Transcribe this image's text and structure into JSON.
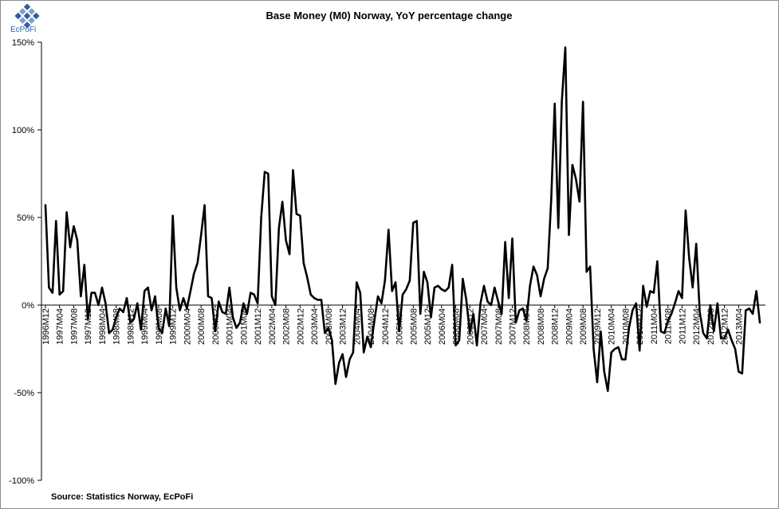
{
  "logo_text": "EcPoFi",
  "source": "Source: Statistics  Norway, EcPoFi",
  "colors": {
    "line": "#000000",
    "axis": "#000000",
    "background": "#ffffff",
    "logo": "#2d5fa6"
  },
  "chart_data": {
    "type": "line",
    "title": "Base Money (M0) Norway, YoY percentage change",
    "xlabel": "",
    "ylabel": "",
    "ylim": [
      -100,
      150
    ],
    "grid": false,
    "legend": "none",
    "y_ticks": [
      150,
      100,
      50,
      0,
      -50,
      -100
    ],
    "y_tick_labels": [
      "150%",
      "100%",
      "50%",
      "0%",
      "-50%",
      "-100%"
    ],
    "x_tick_labels": [
      "1996M12",
      "1997M04",
      "1997M08",
      "1997M12",
      "1998M04",
      "1998M08",
      "1998M12",
      "1999M04",
      "1999M08",
      "1999M12",
      "2000M04",
      "2000M08",
      "2000M12",
      "2001M04",
      "2001M08",
      "2001M12",
      "2002M04",
      "2002M08",
      "2002M12",
      "2003M04",
      "2003M08",
      "2003M12",
      "2004M04",
      "2004M08",
      "2004M12",
      "2005M04",
      "2005M08",
      "2005M12",
      "2006M04",
      "2006M08",
      "2006M12",
      "2007M04",
      "2007M08",
      "2007M12",
      "2008M04",
      "2008M08",
      "2008M12",
      "2009M04",
      "2009M08",
      "2009M12",
      "2010M04",
      "2010M08",
      "2010M12",
      "2011M04",
      "2011M08",
      "2011M12",
      "2012M04",
      "2012M08",
      "2012M12",
      "2013M04"
    ],
    "series": [
      {
        "values": [
          57,
          10,
          7,
          48,
          6,
          8,
          53,
          33,
          45,
          37,
          5,
          23,
          -8,
          7,
          7,
          0,
          10,
          1,
          -16,
          -14,
          -7,
          -2,
          -4,
          4,
          -10,
          -8,
          1,
          -14,
          8,
          10,
          -3,
          5,
          -13,
          -16,
          -2,
          -12,
          51,
          10,
          -3,
          4,
          -2,
          8,
          18,
          24,
          40,
          57,
          5,
          4,
          -15,
          2,
          -4,
          -5,
          10,
          -7,
          -13,
          -10,
          1,
          -5,
          7,
          6,
          1,
          50,
          76,
          75,
          5,
          0,
          44,
          59,
          37,
          29,
          77,
          52,
          51,
          24,
          16,
          6,
          4,
          3,
          3,
          -16,
          -13,
          -20,
          -45,
          -33,
          -28,
          -41,
          -31,
          -27,
          13,
          7,
          -27,
          -18,
          -24,
          -9,
          5,
          1,
          14,
          43,
          8,
          13,
          -15,
          6,
          9,
          14,
          47,
          48,
          -5,
          19,
          13,
          -7,
          10,
          11,
          9,
          8,
          10,
          23,
          -23,
          -20,
          15,
          3,
          -16,
          -5,
          -23,
          1,
          11,
          2,
          0,
          10,
          2,
          -5,
          36,
          4,
          38,
          -10,
          -3,
          -2,
          -9,
          11,
          22,
          17,
          5,
          15,
          21,
          60,
          115,
          44,
          116,
          147,
          40,
          80,
          72,
          59,
          116,
          19,
          22,
          -25,
          -44,
          -15,
          -38,
          -49,
          -27,
          -25,
          -24,
          -31,
          -31,
          -13,
          -3,
          1,
          -26,
          11,
          -1,
          8,
          7,
          25,
          -15,
          -16,
          -9,
          -5,
          1,
          8,
          4,
          54,
          27,
          10,
          35,
          -4,
          -16,
          -19,
          0,
          -15,
          1,
          -19,
          -19,
          -14,
          -20,
          -25,
          -38,
          -39,
          -3,
          -2,
          -5,
          8,
          -10
        ]
      }
    ]
  }
}
